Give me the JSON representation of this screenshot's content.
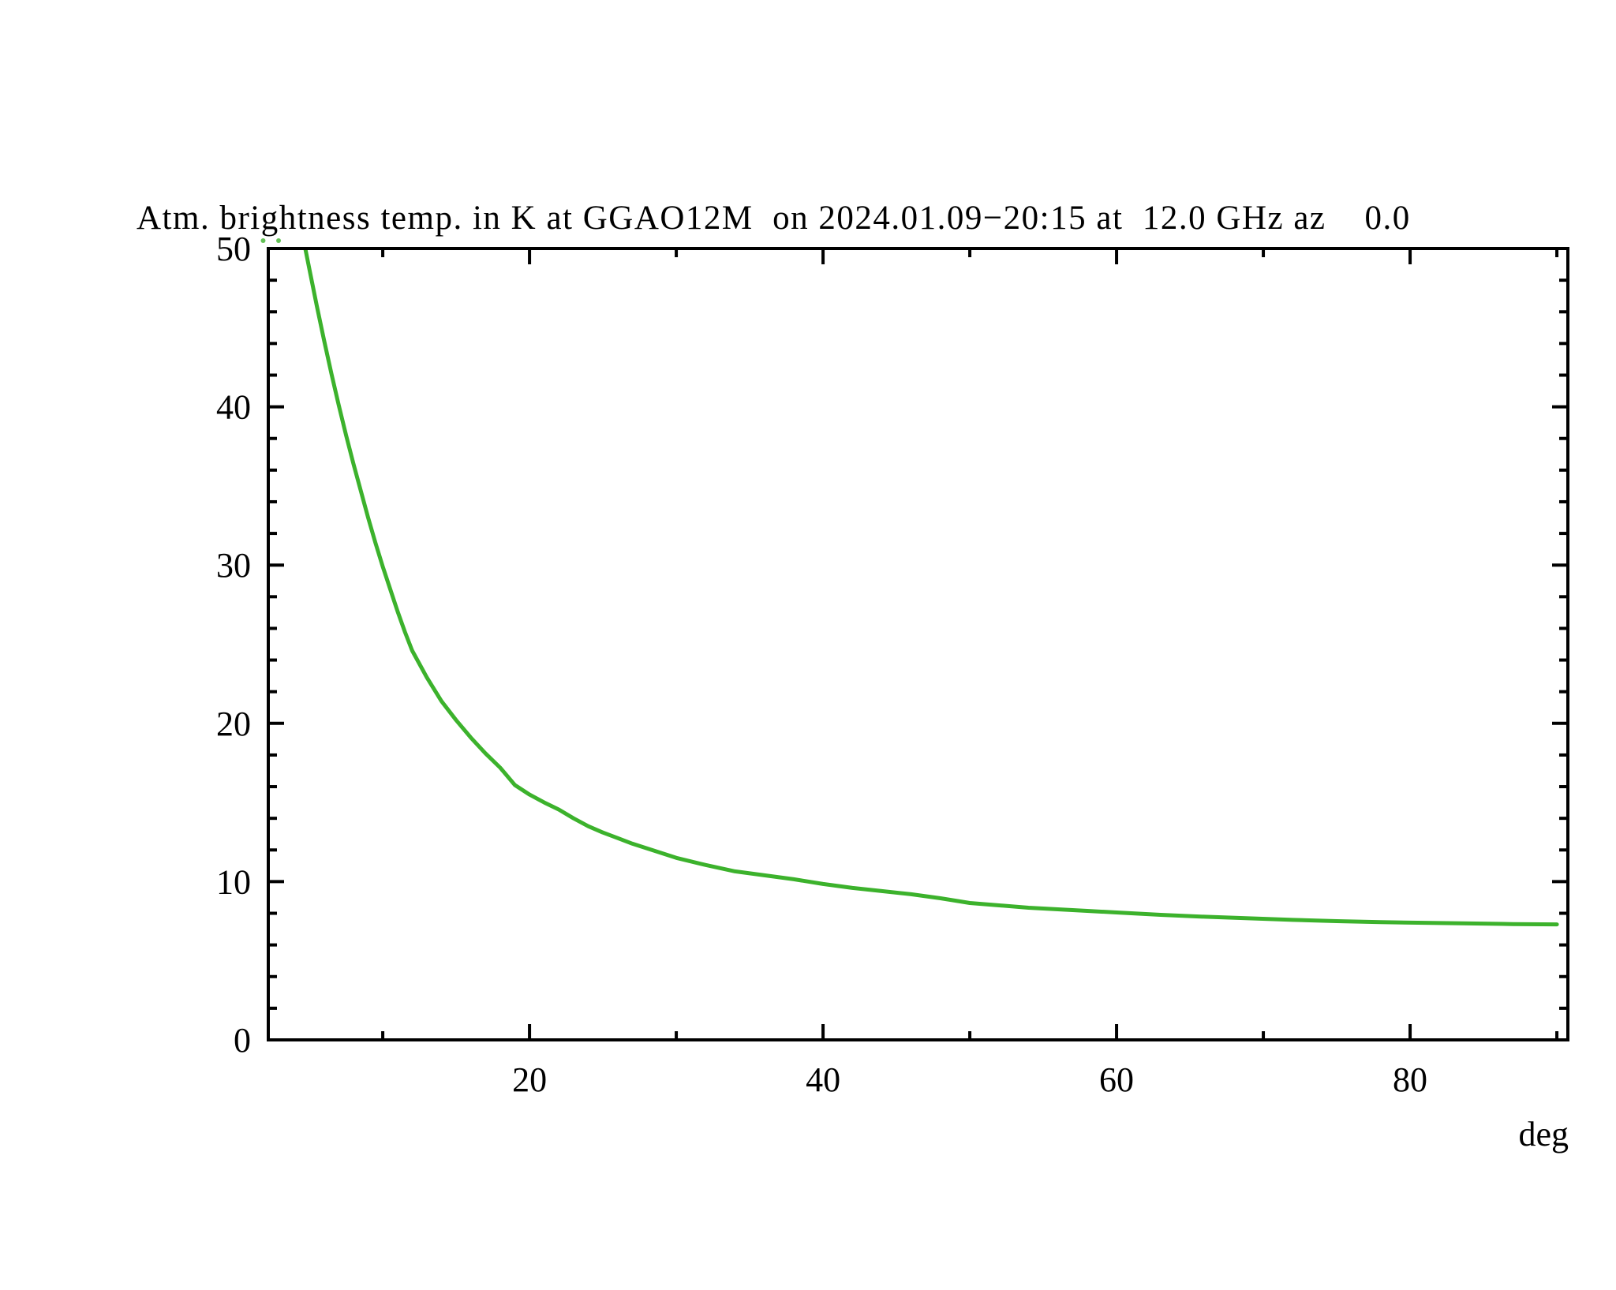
{
  "chart_data": {
    "type": "line",
    "title": "Atm. brightness temp. in K at GGAO12M  on 2024.01.09−20:15 at  12.0 GHz az    0.0",
    "xlabel": "deg",
    "ylabel": "",
    "grid": false,
    "legend_position": "none",
    "x_range": [
      2.2,
      90.75
    ],
    "y_range": [
      0,
      50
    ],
    "x_major_ticks": [
      20,
      40,
      60,
      80
    ],
    "x_major_tick_labels": [
      "20",
      "40",
      "60",
      "80"
    ],
    "x_minor_ticks": [
      10,
      30,
      50,
      70,
      90
    ],
    "y_major_ticks": [
      0,
      10,
      20,
      30,
      40,
      50
    ],
    "y_major_tick_labels": [
      "0",
      "10",
      "20",
      "30",
      "40",
      "50"
    ],
    "y_minor_tick_step": 2,
    "line_color": "#3cb22c",
    "axis_color": "#000000",
    "series": [
      {
        "name": "atmospheric-brightness-temperature-K",
        "x": [
          4.68,
          5,
          5.5,
          6,
          6.5,
          7,
          7.5,
          8,
          8.5,
          9,
          9.5,
          10,
          10.5,
          11,
          11.5,
          12,
          13,
          14,
          15,
          16,
          17,
          18,
          19,
          20,
          21,
          22,
          23,
          24,
          25,
          26,
          27,
          28,
          29,
          30,
          32,
          34,
          36,
          38,
          40,
          42,
          44,
          46,
          48,
          50,
          52,
          54,
          56,
          58,
          60,
          63,
          66,
          69,
          72,
          75,
          78,
          81,
          84,
          87,
          90
        ],
        "y": [
          50.2,
          48.7,
          46.4,
          44.2,
          42.1,
          40.1,
          38.2,
          36.4,
          34.7,
          33.0,
          31.4,
          29.9,
          28.5,
          27.1,
          25.8,
          24.6,
          22.9,
          21.4,
          20.2,
          19.1,
          18.1,
          17.2,
          16.1,
          15.5,
          15.0,
          14.55,
          14.0,
          13.5,
          13.1,
          12.75,
          12.4,
          12.1,
          11.8,
          11.5,
          11.05,
          10.65,
          10.4,
          10.15,
          9.85,
          9.6,
          9.4,
          9.2,
          8.95,
          8.65,
          8.5,
          8.35,
          8.25,
          8.15,
          8.05,
          7.9,
          7.78,
          7.68,
          7.58,
          7.5,
          7.44,
          7.4,
          7.36,
          7.32,
          7.3
        ]
      }
    ],
    "clipped_points_x_deg": [
      1.85,
      2.9
    ]
  }
}
